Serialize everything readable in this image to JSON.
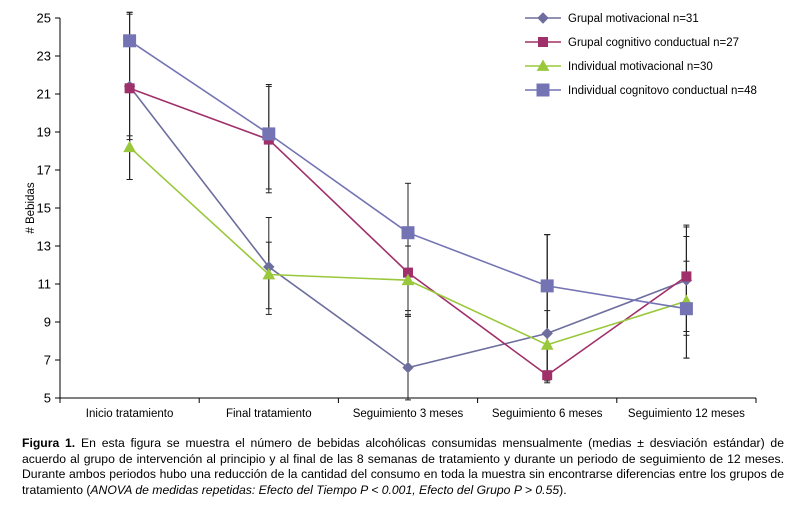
{
  "chart_data": {
    "type": "line",
    "title": "",
    "xlabel": "",
    "ylabel": "# Bebidas",
    "ylim": [
      5,
      25
    ],
    "yticks": [
      5,
      7,
      9,
      11,
      13,
      15,
      17,
      19,
      21,
      23,
      25
    ],
    "categories": [
      "Inicio tratamiento",
      "Final tratamiento",
      "Seguimiento 3 meses",
      "Seguimiento 6 meses",
      "Seguimiento 12 meses"
    ],
    "legend_position": "top-right",
    "series": [
      {
        "name": "Grupal motivacional n=31",
        "color": "#6E6E9E",
        "marker": "diamond",
        "values": [
          21.4,
          11.9,
          6.6,
          8.4,
          11.2
        ],
        "err_low": [
          16.5,
          9.4,
          4.9,
          5.9,
          8.3
        ],
        "err_high": [
          25.3,
          14.5,
          9.3,
          13.6,
          14.1
        ]
      },
      {
        "name": "Grupal cognitivo conductual n=27",
        "color": "#A0306A",
        "marker": "square",
        "values": [
          21.3,
          18.6,
          11.6,
          6.2,
          11.4
        ],
        "err_low": [
          16.5,
          16.0,
          9.6,
          6.0,
          8.5
        ],
        "err_high": [
          25.3,
          21.4,
          13.0,
          13.6,
          14.0
        ]
      },
      {
        "name": "Individual motivacional n=30",
        "color": "#9AC83C",
        "marker": "triangle",
        "values": [
          18.2,
          11.5,
          11.2,
          7.8,
          10.1
        ],
        "err_low": [
          16.5,
          9.7,
          9.3,
          5.8,
          7.1
        ],
        "err_high": [
          18.8,
          13.2,
          13.0,
          9.6,
          13.5
        ]
      },
      {
        "name": "Individual cognitovo conductual n=48",
        "color": "#7474B4",
        "marker": "square",
        "values": [
          23.8,
          18.9,
          13.7,
          10.9,
          9.7
        ],
        "err_low": [
          18.6,
          15.8,
          9.4,
          6.0,
          7.1
        ],
        "err_high": [
          25.2,
          21.5,
          16.3,
          13.6,
          12.2
        ]
      }
    ]
  },
  "caption": {
    "label": "Figura 1.",
    "text": " En esta figura se muestra el número de bebidas alcohólicas consumidas mensualmente (medias ± desviación estándar) de acuerdo al grupo de intervención al principio y al final de las 8 semanas de tratamiento y durante un periodo de seguimiento de 12 meses. Durante ambos periodos hubo una reducción de la cantidad del consumo en toda la muestra sin encontrarse diferencias entre los grupos de tratamiento (",
    "italic": "ANOVA de medidas repetidas: Efecto del Tiempo P < 0.001, Efecto del Grupo P > 0.55",
    "end": ")."
  }
}
